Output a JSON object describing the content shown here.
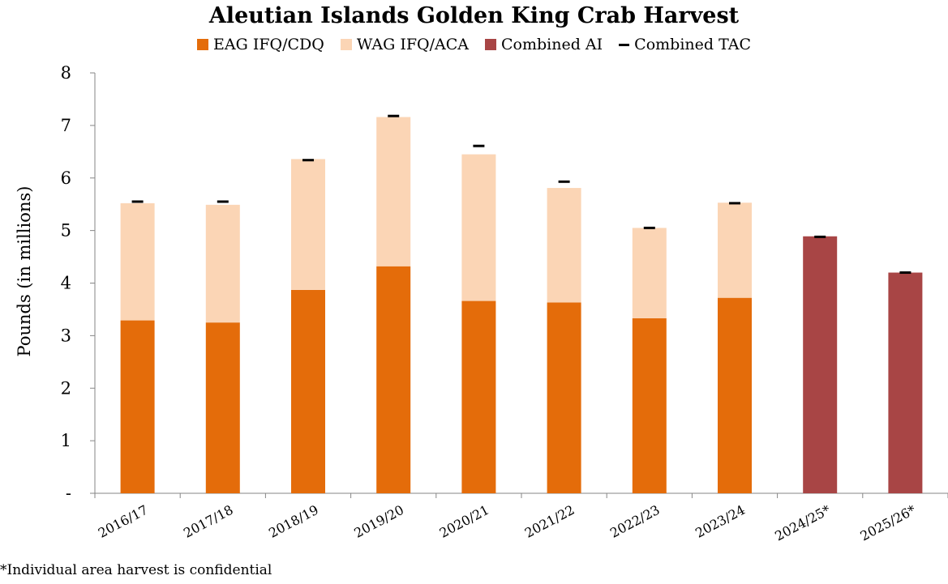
{
  "chart_data": {
    "type": "bar",
    "stacked": true,
    "title": "Aleutian Islands Golden King Crab Harvest",
    "ylabel": "Pounds (in millions)",
    "xlabel": "",
    "ylim": [
      0,
      8
    ],
    "yticks": [
      "-",
      "1",
      "2",
      "3",
      "4",
      "5",
      "6",
      "7",
      "8"
    ],
    "categories": [
      "2016/17",
      "2017/18",
      "2018/19",
      "2019/20",
      "2020/21",
      "2021/22",
      "2022/23",
      "2023/24",
      "2024/25*",
      "2025/26*"
    ],
    "series": [
      {
        "name": "EAG IFQ/CDQ",
        "color": "#E46C0A",
        "values": [
          3.29,
          3.25,
          3.87,
          4.32,
          3.66,
          3.63,
          3.33,
          3.72,
          null,
          null
        ]
      },
      {
        "name": "WAG IFQ/ACA",
        "color": "#FBD5B5",
        "values": [
          2.23,
          2.24,
          2.49,
          2.84,
          2.79,
          2.18,
          1.72,
          1.81,
          null,
          null
        ]
      },
      {
        "name": "Combined AI",
        "color": "#A84545",
        "values": [
          null,
          null,
          null,
          null,
          null,
          null,
          null,
          null,
          4.89,
          4.2
        ]
      }
    ],
    "tac": {
      "name": "Combined TAC",
      "values": [
        5.55,
        5.55,
        6.34,
        7.18,
        6.61,
        5.93,
        5.05,
        5.52,
        4.88,
        4.2
      ]
    },
    "legend_position": "top",
    "grid": false
  },
  "footnote": "*Individual area harvest is confidential",
  "legend_tac_symbol": "dash"
}
